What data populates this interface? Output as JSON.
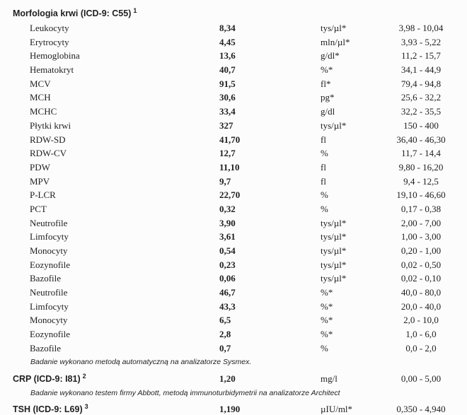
{
  "morphology": {
    "title": "Morfologia krwi (ICD-9: C55)",
    "footnote_marker": "1",
    "rows": [
      {
        "name": "Leukocyty",
        "value": "8,34",
        "unit": "tys/µl*",
        "range": "3,98 - 10,04"
      },
      {
        "name": "Erytrocyty",
        "value": "4,45",
        "unit": "mln/µl*",
        "range": "3,93 - 5,22"
      },
      {
        "name": "Hemoglobina",
        "value": "13,6",
        "unit": "g/dl*",
        "range": "11,2 - 15,7"
      },
      {
        "name": "Hematokryt",
        "value": "40,7",
        "unit": "%*",
        "range": "34,1 - 44,9"
      },
      {
        "name": "MCV",
        "value": "91,5",
        "unit": "fl*",
        "range": "79,4 - 94,8"
      },
      {
        "name": "MCH",
        "value": "30,6",
        "unit": "pg*",
        "range": "25,6 - 32,2"
      },
      {
        "name": "MCHC",
        "value": "33,4",
        "unit": "g/dl",
        "range": "32,2 - 35,5"
      },
      {
        "name": "Płytki krwi",
        "value": "327",
        "unit": "tys/µl*",
        "range": "150 - 400"
      },
      {
        "name": "RDW-SD",
        "value": "41,70",
        "unit": "fl",
        "range": "36,40 - 46,30"
      },
      {
        "name": "RDW-CV",
        "value": "12,7",
        "unit": "%",
        "range": "11,7 - 14,4"
      },
      {
        "name": "PDW",
        "value": "11,10",
        "unit": "fl",
        "range": "9,80 - 16,20"
      },
      {
        "name": "MPV",
        "value": "9,7",
        "unit": "fl",
        "range": "9,4 - 12,5"
      },
      {
        "name": "P-LCR",
        "value": "22,70",
        "unit": "%",
        "range": "19,10 - 46,60"
      },
      {
        "name": "PCT",
        "value": "0,32",
        "unit": "%",
        "range": "0,17 - 0,38"
      },
      {
        "name": "Neutrofile",
        "value": "3,90",
        "unit": "tys/µl*",
        "range": "2,00 - 7,00"
      },
      {
        "name": "Limfocyty",
        "value": "3,61",
        "unit": "tys/µl*",
        "range": "1,00 - 3,00"
      },
      {
        "name": "Monocyty",
        "value": "0,54",
        "unit": "tys/µl*",
        "range": "0,20 - 1,00"
      },
      {
        "name": "Eozynofile",
        "value": "0,23",
        "unit": "tys/µl*",
        "range": "0,02 - 0,50"
      },
      {
        "name": "Bazofile",
        "value": "0,06",
        "unit": "tys/µl*",
        "range": "0,02 - 0,10"
      },
      {
        "name": "Neutrofile",
        "value": "46,7",
        "unit": "%*",
        "range": "40,0 - 80,0"
      },
      {
        "name": "Limfocyty",
        "value": "43,3",
        "unit": "%*",
        "range": "20,0 - 40,0"
      },
      {
        "name": "Monocyty",
        "value": "6,5",
        "unit": "%*",
        "range": "2,0 - 10,0"
      },
      {
        "name": "Eozynofile",
        "value": "2,8",
        "unit": "%*",
        "range": "1,0 - 6,0"
      },
      {
        "name": "Bazofile",
        "value": "0,7",
        "unit": "%",
        "range": "0,0 - 2,0"
      }
    ],
    "note": "Badanie wykonano metodą automatyczną na analizatorze Sysmex."
  },
  "crp": {
    "title": "CRP (ICD-9: I81)",
    "footnote_marker": "2",
    "value": "1,20",
    "unit": "mg/l",
    "range": "0,00 - 5,00",
    "note": "Badanie wykonano testem firmy Abbott, metodą immunoturbidymetrii na analizatorze Architect"
  },
  "tsh": {
    "title": "TSH (ICD-9: L69)",
    "footnote_marker": "3",
    "value": "1,190",
    "unit": "µIU/ml*",
    "range": "0,350 - 4,940"
  }
}
